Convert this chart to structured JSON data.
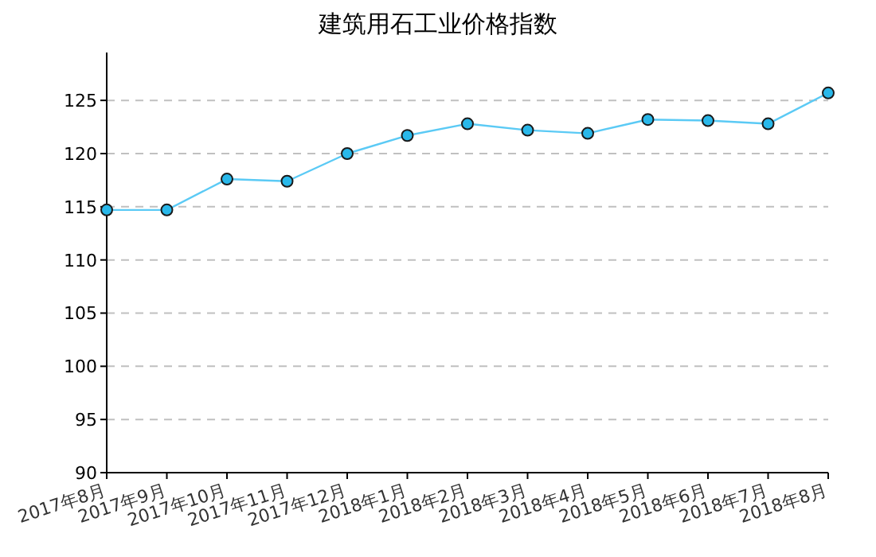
{
  "chart_data": {
    "type": "line",
    "title": "建筑用石工业价格指数",
    "categories": [
      "2017年8月",
      "2017年9月",
      "2017年10月",
      "2017年11月",
      "2017年12月",
      "2018年1月",
      "2018年2月",
      "2018年3月",
      "2018年4月",
      "2018年5月",
      "2018年6月",
      "2018年7月",
      "2018年8月"
    ],
    "series": [
      {
        "color": "#5bcaf5",
        "values": [
          114.7,
          114.7,
          117.6,
          117.4,
          120.0,
          121.7,
          122.8,
          122.2,
          121.9,
          123.2,
          123.1,
          122.8,
          125.7
        ]
      }
    ],
    "ylim": [
      90,
      129.5
    ],
    "yticks": [
      90,
      95,
      100,
      105,
      110,
      115,
      120,
      125
    ],
    "grid": "y",
    "marker": "circle",
    "line_style": "solid"
  }
}
